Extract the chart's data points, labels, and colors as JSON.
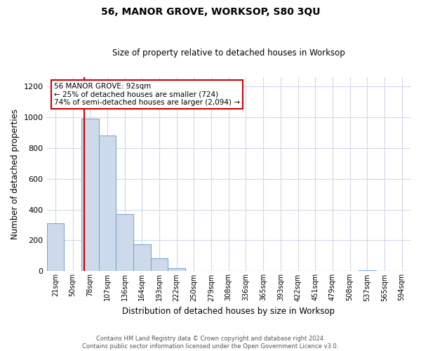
{
  "title": "56, MANOR GROVE, WORKSOP, S80 3QU",
  "subtitle": "Size of property relative to detached houses in Worksop",
  "xlabel": "Distribution of detached houses by size in Worksop",
  "ylabel": "Number of detached properties",
  "bar_labels": [
    "21sqm",
    "50sqm",
    "78sqm",
    "107sqm",
    "136sqm",
    "164sqm",
    "193sqm",
    "222sqm",
    "250sqm",
    "279sqm",
    "308sqm",
    "336sqm",
    "365sqm",
    "393sqm",
    "422sqm",
    "451sqm",
    "479sqm",
    "508sqm",
    "537sqm",
    "565sqm",
    "594sqm"
  ],
  "bar_values": [
    310,
    0,
    990,
    880,
    370,
    175,
    82,
    22,
    0,
    0,
    0,
    0,
    0,
    0,
    0,
    0,
    0,
    0,
    6,
    0,
    0
  ],
  "bar_color": "#cddaeb",
  "bar_edge_color": "#7fa8cc",
  "vline_color": "#cc0000",
  "annotation_line1": "56 MANOR GROVE: 92sqm",
  "annotation_line2": "← 25% of detached houses are smaller (724)",
  "annotation_line3": "74% of semi-detached houses are larger (2,094) →",
  "box_color": "#ffffff",
  "box_edge_color": "#cc0000",
  "ylim": [
    0,
    1260
  ],
  "yticks": [
    0,
    200,
    400,
    600,
    800,
    1000,
    1200
  ],
  "footer_line1": "Contains HM Land Registry data © Crown copyright and database right 2024.",
  "footer_line2": "Contains public sector information licensed under the Open Government Licence v3.0.",
  "background_color": "#ffffff",
  "grid_color": "#d0d8e8"
}
